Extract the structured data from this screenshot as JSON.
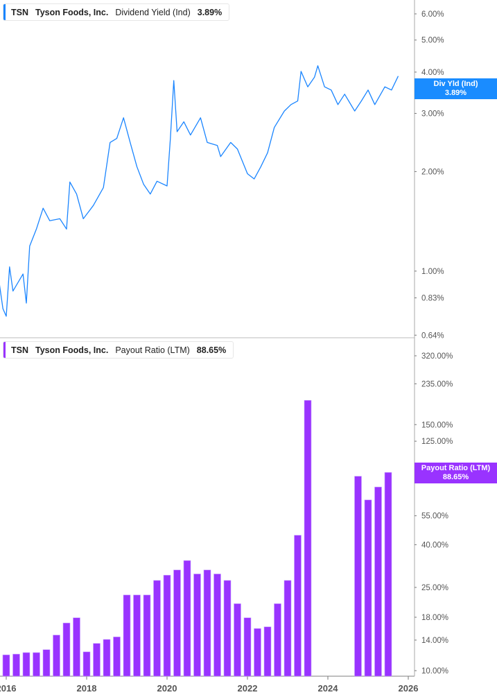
{
  "colors": {
    "yield_line": "#1a85ff",
    "payout_bar": "#9933ff"
  },
  "top_legend": {
    "ticker": "TSN",
    "company": "Tyson Foods, Inc.",
    "metric": "Dividend Yield (Ind)",
    "value": "3.89%"
  },
  "bottom_legend": {
    "ticker": "TSN",
    "company": "Tyson Foods, Inc.",
    "metric": "Payout Ratio (LTM)",
    "value": "88.65%"
  },
  "top_tag": {
    "label": "Div Yld (Ind)",
    "value": "3.89%"
  },
  "bottom_tag": {
    "label": "Payout Ratio (LTM)",
    "value": "88.65%"
  },
  "chart_data": [
    {
      "type": "line",
      "series": [
        {
          "name": "Dividend Yield (Ind)",
          "color": "#1a85ff",
          "points": [
            [
              "2015-11",
              0.91
            ],
            [
              "2015-12",
              0.77
            ],
            [
              "2016-01",
              0.73
            ],
            [
              "2016-02",
              1.03
            ],
            [
              "2016-03",
              0.87
            ],
            [
              "2016-06",
              0.98
            ],
            [
              "2016-07",
              0.8
            ],
            [
              "2016-08",
              1.19
            ],
            [
              "2016-10",
              1.34
            ],
            [
              "2016-12",
              1.55
            ],
            [
              "2017-02",
              1.42
            ],
            [
              "2017-05",
              1.44
            ],
            [
              "2017-07",
              1.34
            ],
            [
              "2017-08",
              1.86
            ],
            [
              "2017-10",
              1.71
            ],
            [
              "2017-12",
              1.44
            ],
            [
              "2018-03",
              1.58
            ],
            [
              "2018-06",
              1.79
            ],
            [
              "2018-08",
              2.45
            ],
            [
              "2018-10",
              2.52
            ],
            [
              "2018-12",
              2.91
            ],
            [
              "2019-02",
              2.45
            ],
            [
              "2019-04",
              2.07
            ],
            [
              "2019-06",
              1.83
            ],
            [
              "2019-08",
              1.71
            ],
            [
              "2019-10",
              1.87
            ],
            [
              "2020-01",
              1.81
            ],
            [
              "2020-02",
              2.52
            ],
            [
              "2020-03",
              3.77
            ],
            [
              "2020-04",
              2.64
            ],
            [
              "2020-06",
              2.83
            ],
            [
              "2020-08",
              2.58
            ],
            [
              "2020-11",
              2.91
            ],
            [
              "2021-01",
              2.45
            ],
            [
              "2021-04",
              2.4
            ],
            [
              "2021-05",
              2.22
            ],
            [
              "2021-08",
              2.45
            ],
            [
              "2021-10",
              2.34
            ],
            [
              "2022-01",
              1.97
            ],
            [
              "2022-03",
              1.9
            ],
            [
              "2022-05",
              2.07
            ],
            [
              "2022-07",
              2.28
            ],
            [
              "2022-09",
              2.72
            ],
            [
              "2022-12",
              3.05
            ],
            [
              "2023-02",
              3.19
            ],
            [
              "2023-04",
              3.27
            ],
            [
              "2023-05",
              4.02
            ],
            [
              "2023-07",
              3.61
            ],
            [
              "2023-09",
              3.86
            ],
            [
              "2023-10",
              4.18
            ],
            [
              "2023-12",
              3.61
            ],
            [
              "2024-02",
              3.53
            ],
            [
              "2024-04",
              3.19
            ],
            [
              "2024-06",
              3.43
            ],
            [
              "2024-09",
              3.05
            ],
            [
              "2024-11",
              3.27
            ],
            [
              "2025-01",
              3.53
            ],
            [
              "2025-03",
              3.19
            ],
            [
              "2025-06",
              3.61
            ],
            [
              "2025-08",
              3.53
            ],
            [
              "2025-10",
              3.89
            ]
          ]
        }
      ],
      "y_scale": "log",
      "yticks": [
        6,
        5,
        4,
        3,
        2,
        1,
        0.83,
        0.64
      ],
      "ytick_labels": [
        "6.00%",
        "5.00%",
        "4.00%",
        "3.00%",
        "2.00%",
        "1.00%",
        "0.83%",
        "0.64%"
      ],
      "ylim": [
        0.64,
        6.0
      ],
      "xlim": [
        "2015-11",
        "2026-02"
      ]
    },
    {
      "type": "bar",
      "start_quarter": "2016-01",
      "series": [
        {
          "name": "Payout Ratio (LTM)",
          "color": "#9933ff",
          "values": [
            11.9,
            12.0,
            12.2,
            12.2,
            12.6,
            14.8,
            16.9,
            17.9,
            12.3,
            13.5,
            14.1,
            14.5,
            23.0,
            23.0,
            23.0,
            27.0,
            28.6,
            30.3,
            33.6,
            29.0,
            30.3,
            29.0,
            27.0,
            20.9,
            17.9,
            15.9,
            16.2,
            20.9,
            27.0,
            44.4,
            196.0,
            null,
            null,
            null,
            null,
            85.0,
            65.5,
            75.5,
            88.65
          ]
        }
      ],
      "y_scale": "log",
      "yticks": [
        320,
        235,
        150,
        125,
        90,
        55,
        40,
        25,
        18,
        14,
        10
      ],
      "ytick_labels": [
        "320.00%",
        "235.00%",
        "150.00%",
        "125.00%",
        "",
        "55.00%",
        "40.00%",
        "25.00%",
        "18.00%",
        "14.00%",
        "10.00%"
      ],
      "ylim": [
        10,
        320
      ],
      "xticks": [
        "2016",
        "2018",
        "2020",
        "2022",
        "2024",
        "2026"
      ]
    }
  ]
}
